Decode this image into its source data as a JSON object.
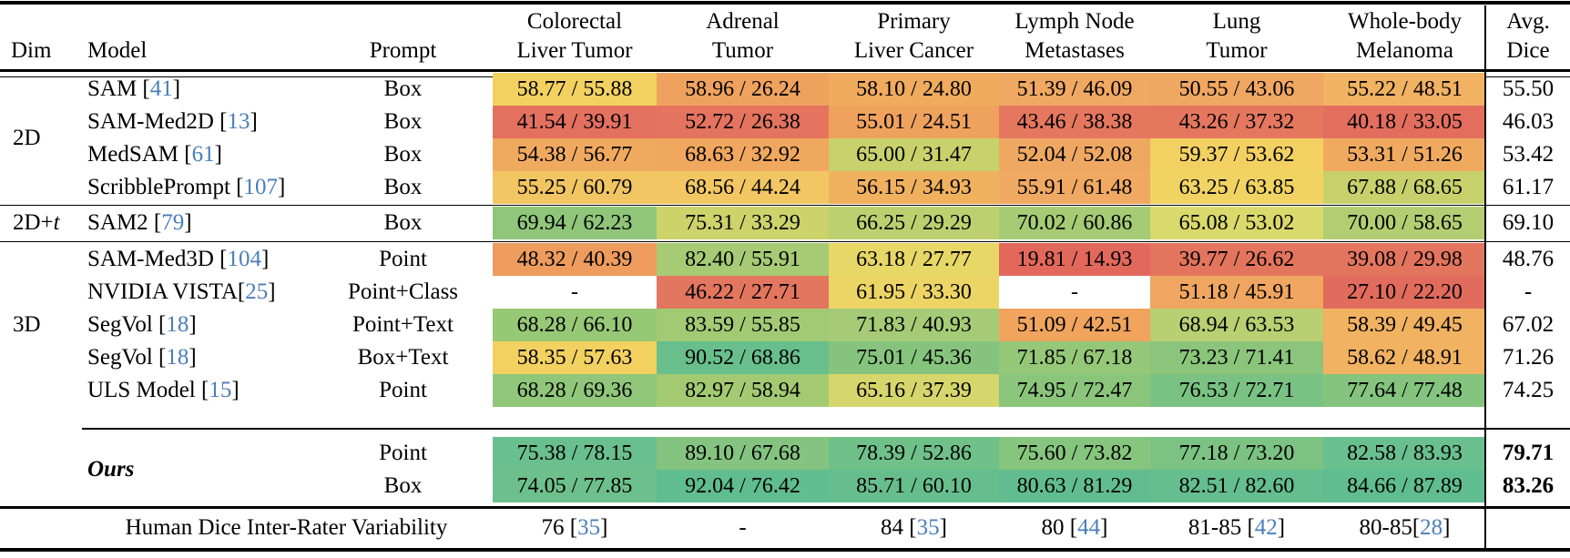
{
  "palette": {
    "link_color": "#4a7ebb",
    "text_color": "#000000"
  },
  "header": {
    "dim": "Dim",
    "model": "Model",
    "prompt": "Prompt",
    "columns": [
      {
        "line1": "Colorectal",
        "line2": "Liver Tumor"
      },
      {
        "line1": "Adrenal",
        "line2": "Tumor"
      },
      {
        "line1": "Primary",
        "line2": "Liver Cancer"
      },
      {
        "line1": "Lymph Node",
        "line2": "Metastases"
      },
      {
        "line1": "Lung",
        "line2": "Tumor"
      },
      {
        "line1": "Whole-body",
        "line2": "Melanoma"
      }
    ],
    "avg": {
      "line1": "Avg.",
      "line2": "Dice"
    }
  },
  "sections": [
    {
      "dim": [
        {
          "t": "2D"
        }
      ],
      "rows": [
        {
          "model": [
            {
              "t": "SAM ["
            },
            {
              "t": "41",
              "link": true
            },
            {
              "t": "]"
            }
          ],
          "prompt": "Box",
          "cells": [
            {
              "text": "58.77 / 55.88",
              "bg": "#f2d161"
            },
            {
              "text": "58.96 / 26.24",
              "bg": "#efa25e"
            },
            {
              "text": "58.10 / 24.80",
              "bg": "#f0ab5e"
            },
            {
              "text": "51.39 / 46.09",
              "bg": "#f0a862"
            },
            {
              "text": "50.55 / 43.06",
              "bg": "#f0a762"
            },
            {
              "text": "55.22 / 48.51",
              "bg": "#f1b261"
            }
          ],
          "avg": {
            "text": "55.50",
            "bold": false
          }
        },
        {
          "model": [
            {
              "t": "SAM-Med2D ["
            },
            {
              "t": "13",
              "link": true
            },
            {
              "t": "]"
            }
          ],
          "prompt": "Box",
          "cells": [
            {
              "text": "41.54 / 39.91",
              "bg": "#e4705f"
            },
            {
              "text": "52.72 / 26.38",
              "bg": "#e4745f"
            },
            {
              "text": "55.01 / 24.51",
              "bg": "#efa25e"
            },
            {
              "text": "43.46 / 38.38",
              "bg": "#e5775f"
            },
            {
              "text": "43.26 / 37.32",
              "bg": "#e5775f"
            },
            {
              "text": "40.18 / 33.05",
              "bg": "#e36e5e"
            }
          ],
          "avg": {
            "text": "46.03",
            "bold": false
          }
        },
        {
          "model": [
            {
              "t": "MedSAM ["
            },
            {
              "t": "61",
              "link": true
            },
            {
              "t": "]"
            }
          ],
          "prompt": "Box",
          "cells": [
            {
              "text": "54.38 / 56.77",
              "bg": "#f0aa5f"
            },
            {
              "text": "68.63 / 32.92",
              "bg": "#f0a75e"
            },
            {
              "text": "65.00 / 31.47",
              "bg": "#c8d16c"
            },
            {
              "text": "52.04 / 52.08",
              "bg": "#efa862"
            },
            {
              "text": "59.37 / 53.62",
              "bg": "#f2d062"
            },
            {
              "text": "53.31 / 51.26",
              "bg": "#f0aa60"
            }
          ],
          "avg": {
            "text": "53.42",
            "bold": false
          }
        },
        {
          "model": [
            {
              "t": "ScribblePrompt ["
            },
            {
              "t": "107",
              "link": true
            },
            {
              "t": "]"
            }
          ],
          "prompt": "Box",
          "cells": [
            {
              "text": "55.25 / 60.79",
              "bg": "#f2c563"
            },
            {
              "text": "68.56 / 44.24",
              "bg": "#f2c763"
            },
            {
              "text": "56.15 / 34.93",
              "bg": "#f0b15f"
            },
            {
              "text": "55.91 / 61.48",
              "bg": "#f0a962"
            },
            {
              "text": "63.25 / 63.85",
              "bg": "#f0d363"
            },
            {
              "text": "67.88 / 68.65",
              "bg": "#c7d16c"
            }
          ],
          "avg": {
            "text": "61.17",
            "bold": false
          }
        }
      ]
    },
    {
      "dim": [
        {
          "t": "2D+"
        },
        {
          "t": "t",
          "ital": true
        }
      ],
      "rows": [
        {
          "model": [
            {
              "t": "SAM2 ["
            },
            {
              "t": "79",
              "link": true
            },
            {
              "t": "]"
            }
          ],
          "prompt": "Box",
          "cells": [
            {
              "text": "69.94 / 62.23",
              "bg": "#8fc67a"
            },
            {
              "text": "75.31 / 33.29",
              "bg": "#ccd36b"
            },
            {
              "text": "66.25 / 29.29",
              "bg": "#bdd06f"
            },
            {
              "text": "70.02 / 60.86",
              "bg": "#a5cb74"
            },
            {
              "text": "65.08 / 53.02",
              "bg": "#d9d96c"
            },
            {
              "text": "70.00 / 58.65",
              "bg": "#b3ce72"
            }
          ],
          "avg": {
            "text": "69.10",
            "bold": false
          }
        }
      ]
    },
    {
      "dim": [
        {
          "t": "3D"
        }
      ],
      "rows": [
        {
          "model": [
            {
              "t": "SAM-Med3D ["
            },
            {
              "t": "104",
              "link": true
            },
            {
              "t": "]"
            }
          ],
          "prompt": "Point",
          "cells": [
            {
              "text": "48.32 / 40.39",
              "bg": "#ee9c5e"
            },
            {
              "text": "82.40 / 55.91",
              "bg": "#a6cb74"
            },
            {
              "text": "63.18 / 27.77",
              "bg": "#e6d767"
            },
            {
              "text": "19.81 / 14.93",
              "bg": "#e3685c"
            },
            {
              "text": "39.77 / 26.62",
              "bg": "#e3745e"
            },
            {
              "text": "39.08 / 29.98",
              "bg": "#e3745e"
            }
          ],
          "avg": {
            "text": "48.76",
            "bold": false
          }
        },
        {
          "model": [
            {
              "t": "NVIDIA VISTA["
            },
            {
              "t": "25",
              "link": true
            },
            {
              "t": "]"
            }
          ],
          "prompt": "Point+Class",
          "cells": [
            {
              "text": "-",
              "bg": ""
            },
            {
              "text": "46.22 / 27.71",
              "bg": "#e3765f"
            },
            {
              "text": "61.95 / 33.30",
              "bg": "#ecd465"
            },
            {
              "text": "-",
              "bg": ""
            },
            {
              "text": "51.18 / 45.91",
              "bg": "#f0a660"
            },
            {
              "text": "27.10 / 22.20",
              "bg": "#e16b5c"
            }
          ],
          "avg": {
            "text": "-",
            "bold": false
          }
        },
        {
          "model": [
            {
              "t": "SegVol ["
            },
            {
              "t": "18",
              "link": true
            },
            {
              "t": "]"
            }
          ],
          "prompt": "Point+Text",
          "cells": [
            {
              "text": "68.28 / 66.10",
              "bg": "#97c876"
            },
            {
              "text": "83.59 / 55.85",
              "bg": "#a2ca74"
            },
            {
              "text": "71.83 / 40.93",
              "bg": "#a6cb76"
            },
            {
              "text": "51.09 / 42.51",
              "bg": "#f0a45e"
            },
            {
              "text": "68.94 / 63.53",
              "bg": "#b9cf71"
            },
            {
              "text": "58.39 / 49.45",
              "bg": "#f1b262"
            }
          ],
          "avg": {
            "text": "67.02",
            "bold": false
          }
        },
        {
          "model": [
            {
              "t": "SegVol ["
            },
            {
              "t": "18",
              "link": true
            },
            {
              "t": "]"
            }
          ],
          "prompt": "Box+Text",
          "cells": [
            {
              "text": "58.35 / 57.63",
              "bg": "#f2d161"
            },
            {
              "text": "90.52 / 68.86",
              "bg": "#68bf8c"
            },
            {
              "text": "75.01 / 45.36",
              "bg": "#86c47d"
            },
            {
              "text": "71.85 / 67.18",
              "bg": "#94c777"
            },
            {
              "text": "73.23 / 71.41",
              "bg": "#8ac57b"
            },
            {
              "text": "58.62 / 48.91",
              "bg": "#f1b262"
            }
          ],
          "avg": {
            "text": "71.26",
            "bold": false
          }
        },
        {
          "model": [
            {
              "t": "ULS Model ["
            },
            {
              "t": "15",
              "link": true
            },
            {
              "t": "]"
            }
          ],
          "prompt": "Point",
          "cells": [
            {
              "text": "68.28 / 69.36",
              "bg": "#90c77a"
            },
            {
              "text": "82.97 / 58.94",
              "bg": "#a3ca73"
            },
            {
              "text": "65.16 / 37.39",
              "bg": "#d5d66b"
            },
            {
              "text": "74.95 / 72.47",
              "bg": "#8bc57b"
            },
            {
              "text": "76.53 / 72.71",
              "bg": "#7ac283"
            },
            {
              "text": "77.64 / 77.48",
              "bg": "#84c47e"
            }
          ],
          "avg": {
            "text": "74.25",
            "bold": false
          }
        }
      ]
    },
    {
      "dim": [
        {
          "t": "Ours",
          "bold": true,
          "ital": true
        }
      ],
      "ours": true,
      "rows": [
        {
          "model": [],
          "prompt": "Point",
          "cells": [
            {
              "text": "75.38 / 78.15",
              "bg": "#69bf8d"
            },
            {
              "text": "89.10 / 67.68",
              "bg": "#84c480"
            },
            {
              "text": "78.39 / 52.86",
              "bg": "#70c08a"
            },
            {
              "text": "75.60 / 73.82",
              "bg": "#86c57d"
            },
            {
              "text": "77.18 / 73.20",
              "bg": "#7cc283"
            },
            {
              "text": "82.58 / 83.93",
              "bg": "#69bf8e"
            }
          ],
          "avg": {
            "text": "79.71",
            "bold": true
          }
        },
        {
          "model": [],
          "prompt": "Box",
          "cells": [
            {
              "text": "74.05 / 77.85",
              "bg": "#6dc08b"
            },
            {
              "text": "92.04 / 76.42",
              "bg": "#60bd90"
            },
            {
              "text": "85.71 / 60.10",
              "bg": "#66be8d"
            },
            {
              "text": "80.63 / 81.29",
              "bg": "#61bd90"
            },
            {
              "text": "82.51 / 82.60",
              "bg": "#64be8e"
            },
            {
              "text": "84.66 / 87.89",
              "bg": "#60bd90"
            }
          ],
          "avg": {
            "text": "83.26",
            "bold": true
          }
        }
      ]
    }
  ],
  "human_row": {
    "label": "Human Dice Inter-Rater Variability",
    "cells": [
      [
        {
          "t": "76 ["
        },
        {
          "t": "35",
          "link": true
        },
        {
          "t": "]"
        }
      ],
      [
        {
          "t": "-"
        }
      ],
      [
        {
          "t": "84 ["
        },
        {
          "t": "35",
          "link": true
        },
        {
          "t": "]"
        }
      ],
      [
        {
          "t": "80 ["
        },
        {
          "t": "44",
          "link": true
        },
        {
          "t": "]"
        }
      ],
      [
        {
          "t": "81-85 ["
        },
        {
          "t": "42",
          "link": true
        },
        {
          "t": "]"
        }
      ],
      [
        {
          "t": "80-85["
        },
        {
          "t": "28",
          "link": true
        },
        {
          "t": "]"
        }
      ]
    ],
    "avg": ""
  }
}
